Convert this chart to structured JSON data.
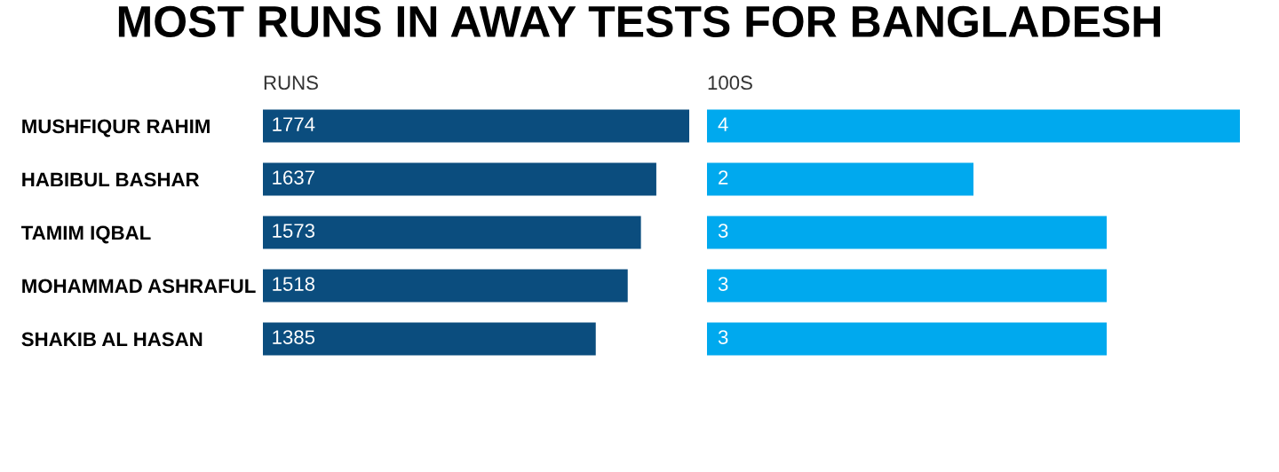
{
  "chart_data": [
    {
      "type": "bar",
      "orientation": "horizontal",
      "title": "MOST RUNS IN AWAY TESTS FOR BANGLADESH",
      "subtitle": "RUNS",
      "categories": [
        "MUSHFIQUR RAHIM",
        "HABIBUL BASHAR",
        "TAMIM IQBAL",
        "MOHAMMAD ASHRAFUL",
        "SHAKIB AL HASAN"
      ],
      "values": [
        1774,
        1637,
        1573,
        1518,
        1385
      ],
      "color": "#0b4d7e",
      "data_labels": true,
      "tick_labels": "y",
      "grid": false
    },
    {
      "type": "bar",
      "orientation": "horizontal",
      "subtitle": "100S",
      "categories": [
        null,
        null,
        null,
        null,
        null
      ],
      "values": [
        4,
        2,
        3,
        3,
        3
      ],
      "color": "#00a9ee",
      "data_labels": true,
      "tick_labels": "y",
      "grid": false
    }
  ]
}
